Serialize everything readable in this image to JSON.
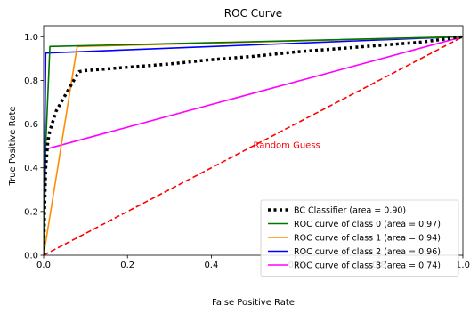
{
  "chart_data": {
    "type": "line",
    "title": "ROC Curve",
    "xlabel": "False Positive Rate",
    "ylabel": "True Positive Rate",
    "xlim": [
      0,
      1
    ],
    "ylim": [
      0,
      1.05
    ],
    "xticks": [
      "0.0",
      "0.2",
      "0.4",
      "0.6",
      "0.8",
      "1.0"
    ],
    "yticks": [
      "0.0",
      "0.2",
      "0.4",
      "0.6",
      "0.8",
      "1.0"
    ],
    "grid": false,
    "legend_position": "lower-right",
    "series": [
      {
        "name": "BC Classifier (area = 0.90)",
        "color": "#000000",
        "style": "dotted",
        "x": [
          0.0,
          0.002,
          0.005,
          0.01,
          0.015,
          0.02,
          0.03,
          0.045,
          0.06,
          0.075,
          0.085,
          0.1,
          0.2,
          0.3,
          0.4,
          0.5,
          0.6,
          0.7,
          0.8,
          0.9,
          1.0
        ],
        "y": [
          0.0,
          0.2,
          0.4,
          0.52,
          0.57,
          0.6,
          0.66,
          0.71,
          0.76,
          0.81,
          0.84,
          0.845,
          0.86,
          0.875,
          0.895,
          0.91,
          0.93,
          0.945,
          0.96,
          0.975,
          1.0
        ]
      },
      {
        "name": "ROC curve of class 0 (area = 0.97)",
        "color": "#007300",
        "style": "solid",
        "x": [
          0.0,
          0.005,
          0.015,
          1.0
        ],
        "y": [
          0.0,
          0.5,
          0.955,
          1.0
        ]
      },
      {
        "name": "ROC curve of class 1 (area = 0.94)",
        "color": "#ff8c00",
        "style": "solid",
        "x": [
          0.0,
          0.08,
          1.0
        ],
        "y": [
          0.0,
          0.955,
          1.0
        ]
      },
      {
        "name": "ROC curve of class 2 (area = 0.96)",
        "color": "#0000ff",
        "style": "solid",
        "x": [
          0.0,
          0.005,
          1.0
        ],
        "y": [
          0.0,
          0.925,
          1.0
        ]
      },
      {
        "name": "ROC curve of class 3 (area = 0.74)",
        "color": "#ff00ff",
        "style": "solid",
        "x": [
          0.0,
          0.005,
          1.0
        ],
        "y": [
          0.0,
          0.485,
          1.0
        ]
      }
    ],
    "reference_line": {
      "label": "Random Guess",
      "color": "#ff0000",
      "style": "dashed",
      "x": [
        0,
        1
      ],
      "y": [
        0,
        1
      ],
      "label_at": [
        0.5,
        0.49
      ]
    }
  }
}
